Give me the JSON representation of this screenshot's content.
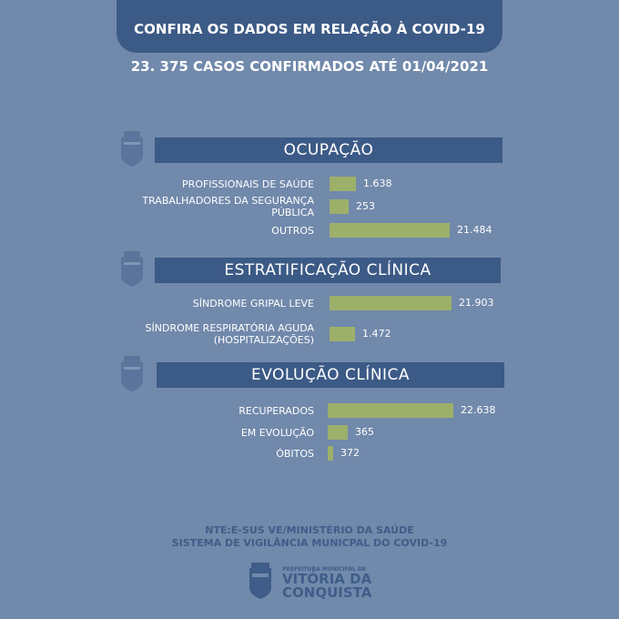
{
  "header": {
    "title": "CONFIRA OS DADOS EM RELAÇÃO À COVID-19",
    "subtitle": "23. 375 CASOS CONFIRMADOS ATÉ 01/04/2021"
  },
  "colors": {
    "background": "#7189ab",
    "header": "#3c5a86",
    "bar": "#9db06a"
  },
  "chart_data": [
    {
      "type": "bar",
      "title": "OCUPAÇÃO",
      "categories": [
        "PROFISSIONAIS DE SAÚDE",
        "TRABALHADORES DA SEGURANÇA PÚBLICA",
        "OUTROS"
      ],
      "values": [
        1638,
        253,
        21484
      ],
      "labels": [
        "1.638",
        "253",
        "21.484"
      ]
    },
    {
      "type": "bar",
      "title": "ESTRATIFICAÇÃO CLÍNICA",
      "categories": [
        "SÍNDROME GRIPAL LEVE",
        "SÍNDROME RESPIRATÓRIA AGUDA (HOSPITALIZAÇÕES)"
      ],
      "values": [
        21903,
        1472
      ],
      "labels": [
        "21.903",
        "1.472"
      ]
    },
    {
      "type": "bar",
      "title": "EVOLUÇÃO CLÍNICA",
      "categories": [
        "RECUPERADOS",
        "EM EVOLUÇÃO",
        "ÓBITOS"
      ],
      "values": [
        22638,
        365,
        372
      ],
      "labels": [
        "22.638",
        "365",
        "372"
      ]
    }
  ],
  "footer": {
    "line1": "NTE:E-SUS VE/MINISTÉRIO DA SAÚDE",
    "line2": "SISTEMA DE VIGILÂNCIA MUNICPAL DO COVID-19",
    "logo_small": "PREFEITURA MUNICIPAL DE",
    "logo_big1": "VITÓRIA DA",
    "logo_big2": "CONQUISTA"
  }
}
